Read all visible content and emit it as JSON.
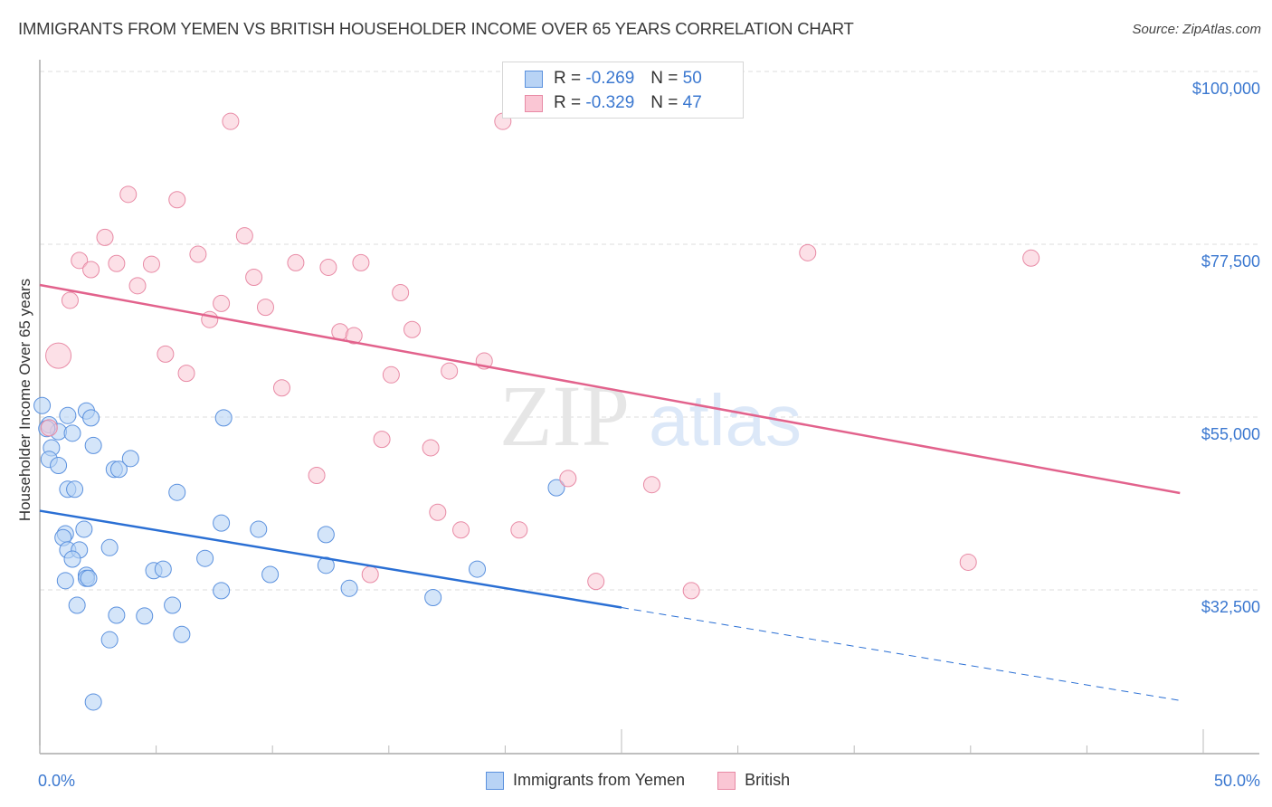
{
  "title": "IMMIGRANTS FROM YEMEN VS BRITISH HOUSEHOLDER INCOME OVER 65 YEARS CORRELATION CHART",
  "source": "Source: ZipAtlas.com",
  "watermark": {
    "zip": "ZIP",
    "atlas": "atlas"
  },
  "colors": {
    "blue_fill": "#b8d3f5",
    "blue_stroke": "#5b91de",
    "blue_line": "#2a6fd4",
    "pink_fill": "#fac6d4",
    "pink_stroke": "#e88aa5",
    "pink_line": "#e2628c",
    "tick_text": "#3b78d0",
    "grid": "#dddddd"
  },
  "legend": {
    "series": [
      {
        "name": "Immigrants from Yemen",
        "r_label": "R =",
        "r_value": "-0.269",
        "n_label": "N =",
        "n_value": "50"
      },
      {
        "name": "British",
        "r_label": "R =",
        "r_value": "-0.329",
        "n_label": "N =",
        "n_value": "47"
      }
    ]
  },
  "chart_data": {
    "type": "scatter",
    "title": "IMMIGRANTS FROM YEMEN VS BRITISH HOUSEHOLDER INCOME OVER 65 YEARS CORRELATION CHART",
    "xlabel": "",
    "ylabel": "Householder Income Over 65 years",
    "xlim": [
      0,
      50
    ],
    "ylim": [
      14000,
      102000
    ],
    "x_tick_labels": [
      "0.0%",
      "50.0%"
    ],
    "y_ticks": [
      32500,
      55000,
      77500,
      100000
    ],
    "y_tick_labels": [
      "$32,500",
      "$55,000",
      "$77,500",
      "$100,000"
    ],
    "grid": "horizontal dashed",
    "legend_position": "bottom-center",
    "series": [
      {
        "name": "Immigrants from Yemen",
        "color": "#b8d3f5",
        "r": -0.269,
        "n": 50,
        "trend": {
          "x0": 0.0,
          "y0": 42800,
          "x1": 25.0,
          "y1": 30200,
          "dashed_to_x": 49.0,
          "dashed_to_y": 18100
        },
        "points": [
          [
            0.1,
            56500
          ],
          [
            0.4,
            54000
          ],
          [
            0.8,
            53100
          ],
          [
            2.0,
            55800
          ],
          [
            1.2,
            55200
          ],
          [
            0.3,
            53500
          ],
          [
            0.5,
            51000
          ],
          [
            1.4,
            52900
          ],
          [
            2.2,
            54900
          ],
          [
            2.3,
            51300
          ],
          [
            0.4,
            49500
          ],
          [
            0.8,
            48700
          ],
          [
            3.2,
            48200
          ],
          [
            3.4,
            48200
          ],
          [
            3.9,
            49600
          ],
          [
            1.2,
            45600
          ],
          [
            1.5,
            45600
          ],
          [
            5.9,
            45200
          ],
          [
            7.9,
            54900
          ],
          [
            22.2,
            45800
          ],
          [
            1.1,
            39800
          ],
          [
            1.9,
            40400
          ],
          [
            1.0,
            39300
          ],
          [
            1.2,
            37700
          ],
          [
            1.7,
            37700
          ],
          [
            3.0,
            38000
          ],
          [
            1.4,
            36500
          ],
          [
            7.1,
            36600
          ],
          [
            7.8,
            41200
          ],
          [
            9.4,
            40400
          ],
          [
            12.3,
            39700
          ],
          [
            4.9,
            35000
          ],
          [
            5.3,
            35200
          ],
          [
            2.0,
            34400
          ],
          [
            2.0,
            34000
          ],
          [
            2.1,
            34000
          ],
          [
            1.1,
            33700
          ],
          [
            9.9,
            34500
          ],
          [
            12.3,
            35700
          ],
          [
            18.8,
            35200
          ],
          [
            13.3,
            32700
          ],
          [
            7.8,
            32400
          ],
          [
            16.9,
            31500
          ],
          [
            1.6,
            30500
          ],
          [
            5.7,
            30500
          ],
          [
            3.3,
            29200
          ],
          [
            4.5,
            29100
          ],
          [
            6.1,
            26700
          ],
          [
            3.0,
            26000
          ],
          [
            2.3,
            17900
          ]
        ]
      },
      {
        "name": "British",
        "color": "#fac6d4",
        "r": -0.329,
        "n": 47,
        "trend": {
          "x0": 0.0,
          "y0": 72200,
          "x1": 49.0,
          "y1": 45100
        },
        "points": [
          [
            8.2,
            93500
          ],
          [
            19.9,
            93500
          ],
          [
            29.4,
            95100
          ],
          [
            3.8,
            84000
          ],
          [
            5.9,
            83300
          ],
          [
            2.8,
            78400
          ],
          [
            8.8,
            78600
          ],
          [
            1.7,
            75400
          ],
          [
            3.3,
            75000
          ],
          [
            4.8,
            74900
          ],
          [
            6.8,
            76200
          ],
          [
            11.0,
            75100
          ],
          [
            12.4,
            74500
          ],
          [
            13.8,
            75100
          ],
          [
            33.0,
            76400
          ],
          [
            42.6,
            75700
          ],
          [
            2.2,
            74200
          ],
          [
            9.2,
            73200
          ],
          [
            4.2,
            72100
          ],
          [
            15.5,
            71200
          ],
          [
            1.3,
            70200
          ],
          [
            7.8,
            69800
          ],
          [
            9.7,
            69300
          ],
          [
            7.3,
            67700
          ],
          [
            12.9,
            66100
          ],
          [
            16.0,
            66400
          ],
          [
            13.5,
            65600
          ],
          [
            0.8,
            63000
          ],
          [
            5.4,
            63200
          ],
          [
            19.1,
            62300
          ],
          [
            6.3,
            60700
          ],
          [
            15.1,
            60500
          ],
          [
            17.6,
            61000
          ],
          [
            10.4,
            58800
          ],
          [
            0.4,
            53600
          ],
          [
            14.7,
            52100
          ],
          [
            16.8,
            51000
          ],
          [
            11.9,
            47400
          ],
          [
            22.7,
            47000
          ],
          [
            26.3,
            46200
          ],
          [
            17.1,
            42600
          ],
          [
            18.1,
            40300
          ],
          [
            20.6,
            40300
          ],
          [
            39.9,
            36100
          ],
          [
            14.2,
            34500
          ],
          [
            23.9,
            33600
          ],
          [
            28.0,
            32400
          ]
        ]
      }
    ]
  },
  "axes": {
    "y_title": "Householder Income Over 65 years",
    "x_min_label": "0.0%",
    "x_max_label": "50.0%"
  }
}
